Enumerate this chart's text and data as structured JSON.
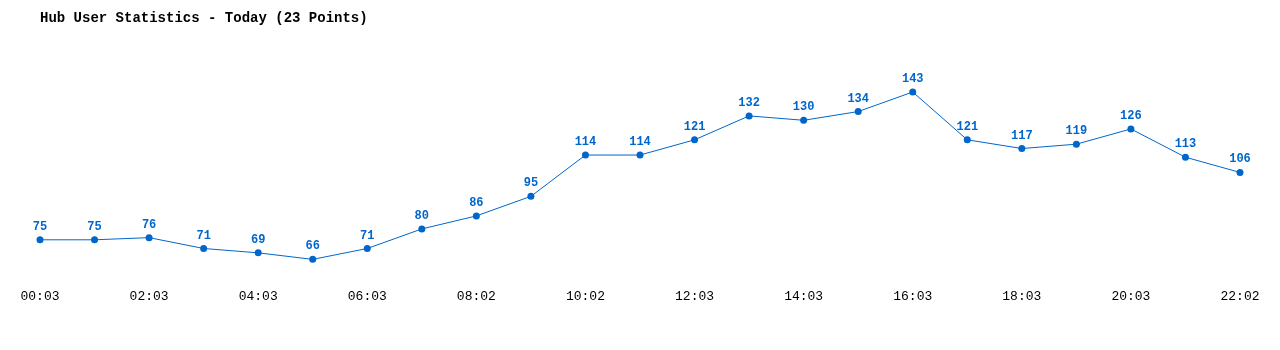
{
  "chart_data": {
    "type": "line",
    "title": "Hub User Statistics - Today (23 Points)",
    "categories": [
      "00:03",
      null,
      "02:03",
      null,
      "04:03",
      null,
      "06:03",
      null,
      "08:02",
      null,
      "10:02",
      null,
      "12:03",
      null,
      "14:03",
      null,
      "16:03",
      null,
      "18:03",
      null,
      "20:03",
      null,
      "22:02"
    ],
    "series": [
      {
        "color": "#0066cc",
        "values": [
          75,
          75,
          76,
          71,
          69,
          66,
          71,
          80,
          86,
          95,
          114,
          114,
          121,
          132,
          130,
          134,
          143,
          121,
          117,
          119,
          126,
          113,
          106
        ]
      }
    ],
    "data_labels": true,
    "marker": "circle",
    "grid": false,
    "legend": false,
    "tick_labels": "x"
  }
}
